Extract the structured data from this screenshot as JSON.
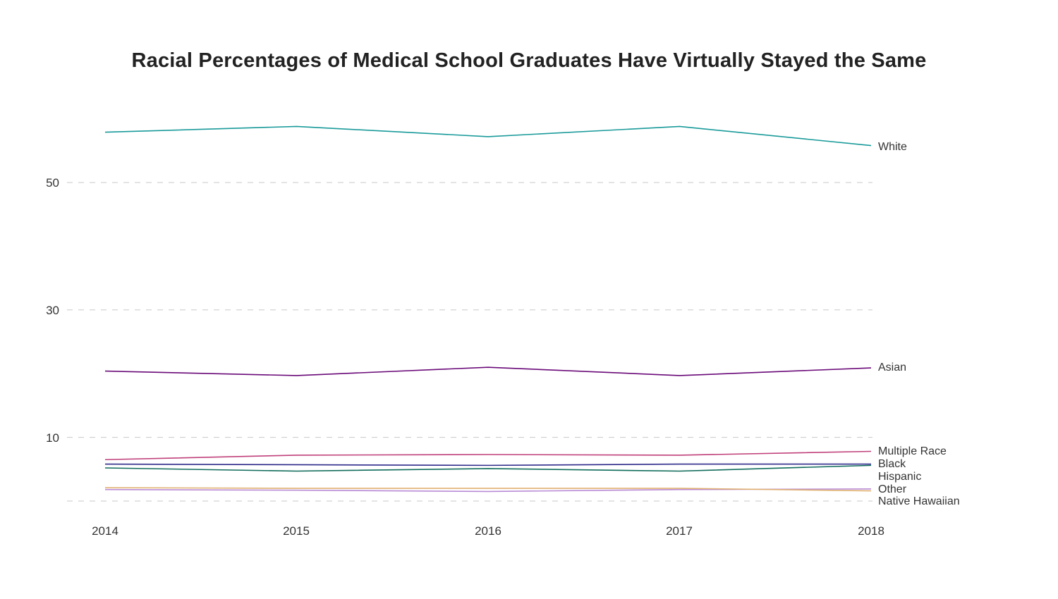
{
  "chart_data": {
    "type": "line",
    "title": "Racial Percentages of Medical School Graduates Have Virtually Stayed the Same",
    "xlabel": "",
    "ylabel": "",
    "x": [
      "2014",
      "2015",
      "2016",
      "2017",
      "2018"
    ],
    "yticks": [
      "50",
      "30",
      "10"
    ],
    "ylim": [
      0,
      62
    ],
    "grid": true,
    "legend": "inline-right",
    "series": [
      {
        "name": "White",
        "color": "#1a9a9a",
        "values": [
          57.9,
          58.8,
          57.2,
          58.8,
          55.8
        ]
      },
      {
        "name": "Asian",
        "color": "#6a0a78",
        "values": [
          20.4,
          19.7,
          21.0,
          19.7,
          20.9
        ]
      },
      {
        "name": "Multiple Race",
        "color": "#c0407a",
        "values": [
          6.5,
          7.2,
          7.3,
          7.2,
          7.8
        ]
      },
      {
        "name": "Black",
        "color": "#2e2a8a",
        "values": [
          5.8,
          5.7,
          5.6,
          5.8,
          5.8
        ]
      },
      {
        "name": "Hispanic",
        "color": "#0f6b5a",
        "values": [
          5.2,
          4.7,
          5.1,
          4.7,
          5.6
        ]
      },
      {
        "name": "Other",
        "color": "#b98ad6",
        "values": [
          1.8,
          1.7,
          1.5,
          1.8,
          1.9
        ]
      },
      {
        "name": "Native Hawaiian",
        "color": "#e0b070",
        "values": [
          2.1,
          2.0,
          2.0,
          2.0,
          1.6
        ]
      }
    ]
  }
}
